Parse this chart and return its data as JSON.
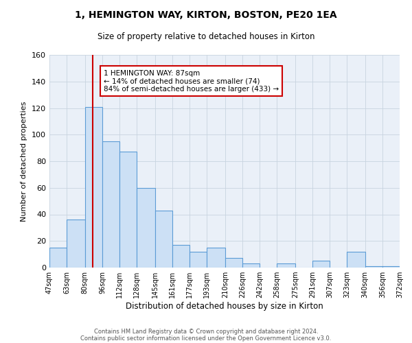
{
  "title": "1, HEMINGTON WAY, KIRTON, BOSTON, PE20 1EA",
  "subtitle": "Size of property relative to detached houses in Kirton",
  "xlabel": "Distribution of detached houses by size in Kirton",
  "ylabel": "Number of detached properties",
  "bin_edges": [
    47,
    63,
    80,
    96,
    112,
    128,
    145,
    161,
    177,
    193,
    210,
    226,
    242,
    258,
    275,
    291,
    307,
    323,
    340,
    356,
    372
  ],
  "bin_heights": [
    15,
    36,
    121,
    95,
    87,
    60,
    43,
    17,
    12,
    15,
    7,
    3,
    0,
    3,
    0,
    5,
    0,
    12,
    1,
    1
  ],
  "bar_facecolor": "#cce0f5",
  "bar_edgecolor": "#5b9bd5",
  "grid_color": "#c8d4e0",
  "bg_color": "#eaf0f8",
  "vline_x": 87,
  "vline_color": "#cc0000",
  "annotation_text": "1 HEMINGTON WAY: 87sqm\n← 14% of detached houses are smaller (74)\n84% of semi-detached houses are larger (433) →",
  "ylim": [
    0,
    160
  ],
  "yticks": [
    0,
    20,
    40,
    60,
    80,
    100,
    120,
    140,
    160
  ],
  "footnote1": "Contains HM Land Registry data © Crown copyright and database right 2024.",
  "footnote2": "Contains public sector information licensed under the Open Government Licence v3.0."
}
